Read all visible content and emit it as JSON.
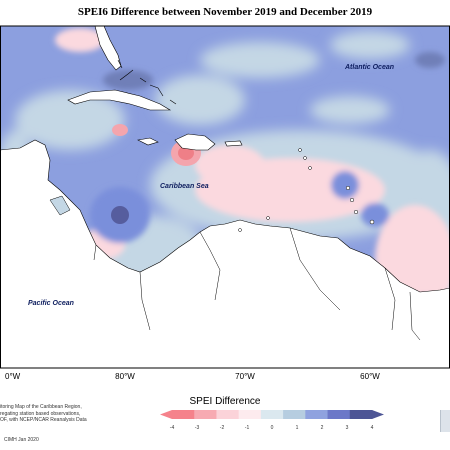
{
  "map": {
    "title": "SPEI6 Difference between November 2019 and December 2019",
    "labels": {
      "atlantic": "Atlantic Ocean",
      "caribbean": "Caribbean Sea",
      "pacific": "Pacific Ocean"
    },
    "longitudes": [
      "0°W",
      "80°W",
      "70°W",
      "60°W"
    ],
    "colors": {
      "ocean_base": "#8c9fdf",
      "land": "#ffffff",
      "light_blue": "#c4d7e5",
      "mid_blue": "#7a8fdb",
      "dark_blue": "#565d9e",
      "light_pink": "#fbd9df",
      "mid_pink": "#f4a5ad",
      "strong_pink": "#ef7f87",
      "outline": "#000000"
    }
  },
  "legend": {
    "title": "SPEI Difference",
    "ticks": [
      "-4",
      "-3",
      "-2",
      "-1",
      "0",
      "1",
      "2",
      "3",
      "4"
    ],
    "colors": [
      "#f5828b",
      "#f7aab2",
      "#fbd3d9",
      "#fdebee",
      "#dbe8ef",
      "#b6cde0",
      "#8fa2df",
      "#6c78c8",
      "#4d5595"
    ]
  },
  "credit": {
    "lines": [
      "itoring Map of the Caribbean Region,",
      "regating station based observations,",
      "OF, with NCEP/NCAR Reanalysis Data"
    ],
    "copyright": "CIMH Jan 2020"
  }
}
